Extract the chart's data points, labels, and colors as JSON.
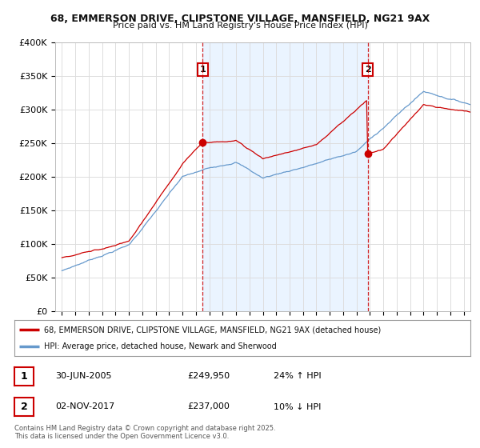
{
  "title": "68, EMMERSON DRIVE, CLIPSTONE VILLAGE, MANSFIELD, NG21 9AX",
  "subtitle": "Price paid vs. HM Land Registry's House Price Index (HPI)",
  "ylim": [
    0,
    400000
  ],
  "yticks": [
    0,
    50000,
    100000,
    150000,
    200000,
    250000,
    300000,
    350000,
    400000
  ],
  "ytick_labels": [
    "£0",
    "£50K",
    "£100K",
    "£150K",
    "£200K",
    "£250K",
    "£300K",
    "£350K",
    "£400K"
  ],
  "xlim_start": 1994.5,
  "xlim_end": 2025.5,
  "red_line_color": "#cc0000",
  "blue_line_color": "#6699cc",
  "blue_fill_color": "#ddeeff",
  "vline_color": "#cc0000",
  "event1_x": 2005.5,
  "event2_x": 2017.83,
  "event1_label": "1",
  "event2_label": "2",
  "legend_red": "68, EMMERSON DRIVE, CLIPSTONE VILLAGE, MANSFIELD, NG21 9AX (detached house)",
  "legend_blue": "HPI: Average price, detached house, Newark and Sherwood",
  "table_row1": [
    "1",
    "30-JUN-2005",
    "£249,950",
    "24% ↑ HPI"
  ],
  "table_row2": [
    "2",
    "02-NOV-2017",
    "£237,000",
    "10% ↓ HPI"
  ],
  "footer": "Contains HM Land Registry data © Crown copyright and database right 2025.\nThis data is licensed under the Open Government Licence v3.0.",
  "background_color": "#ffffff",
  "grid_color": "#dddddd"
}
